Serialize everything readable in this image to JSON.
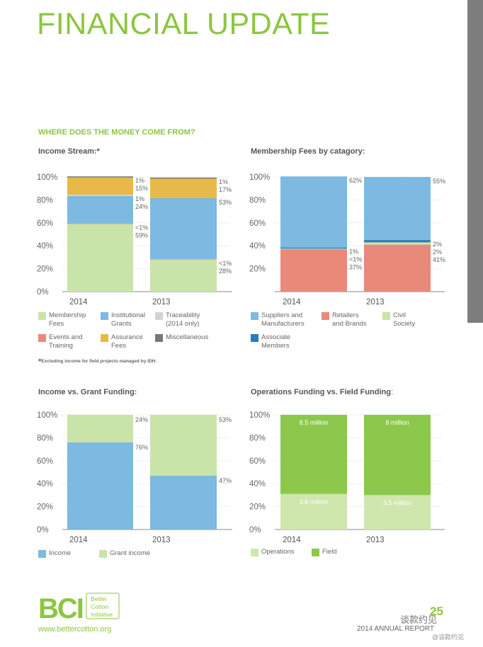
{
  "page": {
    "title": "FINANCIAL UPDATE",
    "section_heading": "WHERE DOES THE MONEY COME FROM?",
    "footnote_star": "*",
    "footnote": "Excluding income for field projects managed by IDH.",
    "website": "www.bettercotton.org",
    "report_label": "2014 ANNUAL REPORT",
    "page_number": "25",
    "logo": {
      "mark": "BCI",
      "line1": "Better",
      "line2": "Cotton",
      "line3": "Initiative"
    },
    "watermark": "谈款约见",
    "watermark_small": "@谈款约见",
    "colors": {
      "accent_green": "#8cc63f",
      "sidebar_gray": "#7d7d7d"
    }
  },
  "charts": {
    "income_stream": {
      "title": "Income Stream:",
      "title_suffix": "*"
    },
    "membership_fees": {
      "title": "Membership Fees by catagory:"
    },
    "income_vs_grant": {
      "title": "Income vs. Grant Funding:"
    },
    "operations_vs_field": {
      "title": "Operations Funding vs. Field Funding",
      "title_suffix": ":"
    }
  },
  "chart_data": [
    {
      "id": "income_stream",
      "type": "bar",
      "stacked": true,
      "title": "Income Stream:*",
      "categories": [
        "2014",
        "2013"
      ],
      "yticks": [
        "0%",
        "20%",
        "40%",
        "60%",
        "80%",
        "100%"
      ],
      "ylim": [
        0,
        100
      ],
      "series": [
        {
          "name": "Membership Fees",
          "color": "#c9e4a8",
          "values": [
            59,
            28
          ],
          "labels": [
            "59%",
            "28%"
          ]
        },
        {
          "name": "Events and Training",
          "color": "#e9897a",
          "values": [
            0.5,
            0.5
          ],
          "labels": [
            "<1%",
            "<1%"
          ]
        },
        {
          "name": "Institutional Grants",
          "color": "#7db9e0",
          "values": [
            24,
            53
          ],
          "labels": [
            "24%",
            "53%"
          ]
        },
        {
          "name": "Traceability (2014 only)",
          "color": "#d3d3d3",
          "values": [
            1,
            0
          ],
          "labels": [
            "1%",
            ""
          ]
        },
        {
          "name": "Assurance Fees",
          "color": "#e8b84a",
          "values": [
            15,
            17
          ],
          "labels": [
            "15%",
            "17%"
          ]
        },
        {
          "name": "Miscellaneous",
          "color": "#777777",
          "values": [
            1,
            1
          ],
          "labels": [
            "1%",
            "1%"
          ]
        }
      ],
      "legend": [
        {
          "label": "Membership\nFees",
          "color": "#c9e4a8"
        },
        {
          "label": "Institutional\nGrants",
          "color": "#7db9e0"
        },
        {
          "label": "Traceability\n(2014 only)",
          "color": "#d3d3d3"
        },
        {
          "label": "Events and\nTraining",
          "color": "#e9897a"
        },
        {
          "label": "Assurance\nFees",
          "color": "#e8b84a"
        },
        {
          "label": "Miscellaneous",
          "color": "#777777"
        }
      ]
    },
    {
      "id": "membership_fees",
      "type": "bar",
      "stacked": true,
      "title": "Membership Fees by catagory:",
      "categories": [
        "2014",
        "2013"
      ],
      "yticks": [
        "20%",
        "40%",
        "60%",
        "80%",
        "100%"
      ],
      "ylim": [
        0,
        100
      ],
      "series": [
        {
          "name": "Retailers and Brands",
          "color": "#e9897a",
          "values": [
            37,
            41
          ],
          "labels": [
            "37%",
            "41%"
          ]
        },
        {
          "name": "Civil Society",
          "color": "#c9e4a8",
          "values": [
            0.5,
            2
          ],
          "labels": [
            "<1%",
            "2%"
          ]
        },
        {
          "name": "Associate Members",
          "color": "#2a7ab8",
          "values": [
            1,
            2
          ],
          "labels": [
            "1%",
            "2%"
          ]
        },
        {
          "name": "Suppliers and Manufacturers",
          "color": "#7db9e0",
          "values": [
            62,
            55
          ],
          "labels": [
            "62%",
            "55%"
          ]
        }
      ],
      "legend": [
        {
          "label": "Suppliers and\nManufacturers",
          "color": "#7db9e0"
        },
        {
          "label": "Retailers\nand Brands",
          "color": "#e9897a"
        },
        {
          "label": "Civil\nSociety",
          "color": "#c9e4a8"
        },
        {
          "label": "Associate\nMembers",
          "color": "#2a7ab8"
        }
      ]
    },
    {
      "id": "income_vs_grant",
      "type": "bar",
      "stacked": true,
      "title": "Income vs. Grant Funding:",
      "categories": [
        "2014",
        "2013"
      ],
      "yticks": [
        "0%",
        "20%",
        "40%",
        "60%",
        "80%",
        "100%"
      ],
      "ylim": [
        0,
        100
      ],
      "series": [
        {
          "name": "Income",
          "color": "#7db9e0",
          "values": [
            76,
            47
          ],
          "labels": [
            "76%",
            "47%"
          ]
        },
        {
          "name": "Grant income",
          "color": "#c9e4a8",
          "values": [
            24,
            53
          ],
          "labels": [
            "24%",
            "53%"
          ]
        }
      ],
      "legend": [
        {
          "label": "Income",
          "color": "#7db9e0"
        },
        {
          "label": "Grant income",
          "color": "#c9e4a8"
        }
      ]
    },
    {
      "id": "operations_vs_field",
      "type": "bar",
      "stacked": true,
      "title": "Operations Funding vs. Field Funding:",
      "categories": [
        "2014",
        "2013"
      ],
      "yticks": [
        "0%",
        "20%",
        "40%",
        "60%",
        "80%",
        "100%"
      ],
      "ylim": [
        0,
        100
      ],
      "series": [
        {
          "name": "Operations",
          "color": "#cfe6ad",
          "values": [
            31,
            30
          ],
          "labels": [
            "3.8 million",
            "3.5 million"
          ]
        },
        {
          "name": "Field",
          "color": "#8cc84b",
          "values": [
            69,
            70
          ],
          "labels": [
            "8.5 million",
            "8 million"
          ]
        }
      ],
      "legend": [
        {
          "label": "Operations",
          "color": "#cfe6ad"
        },
        {
          "label": "Field",
          "color": "#8cc84b"
        }
      ]
    }
  ]
}
